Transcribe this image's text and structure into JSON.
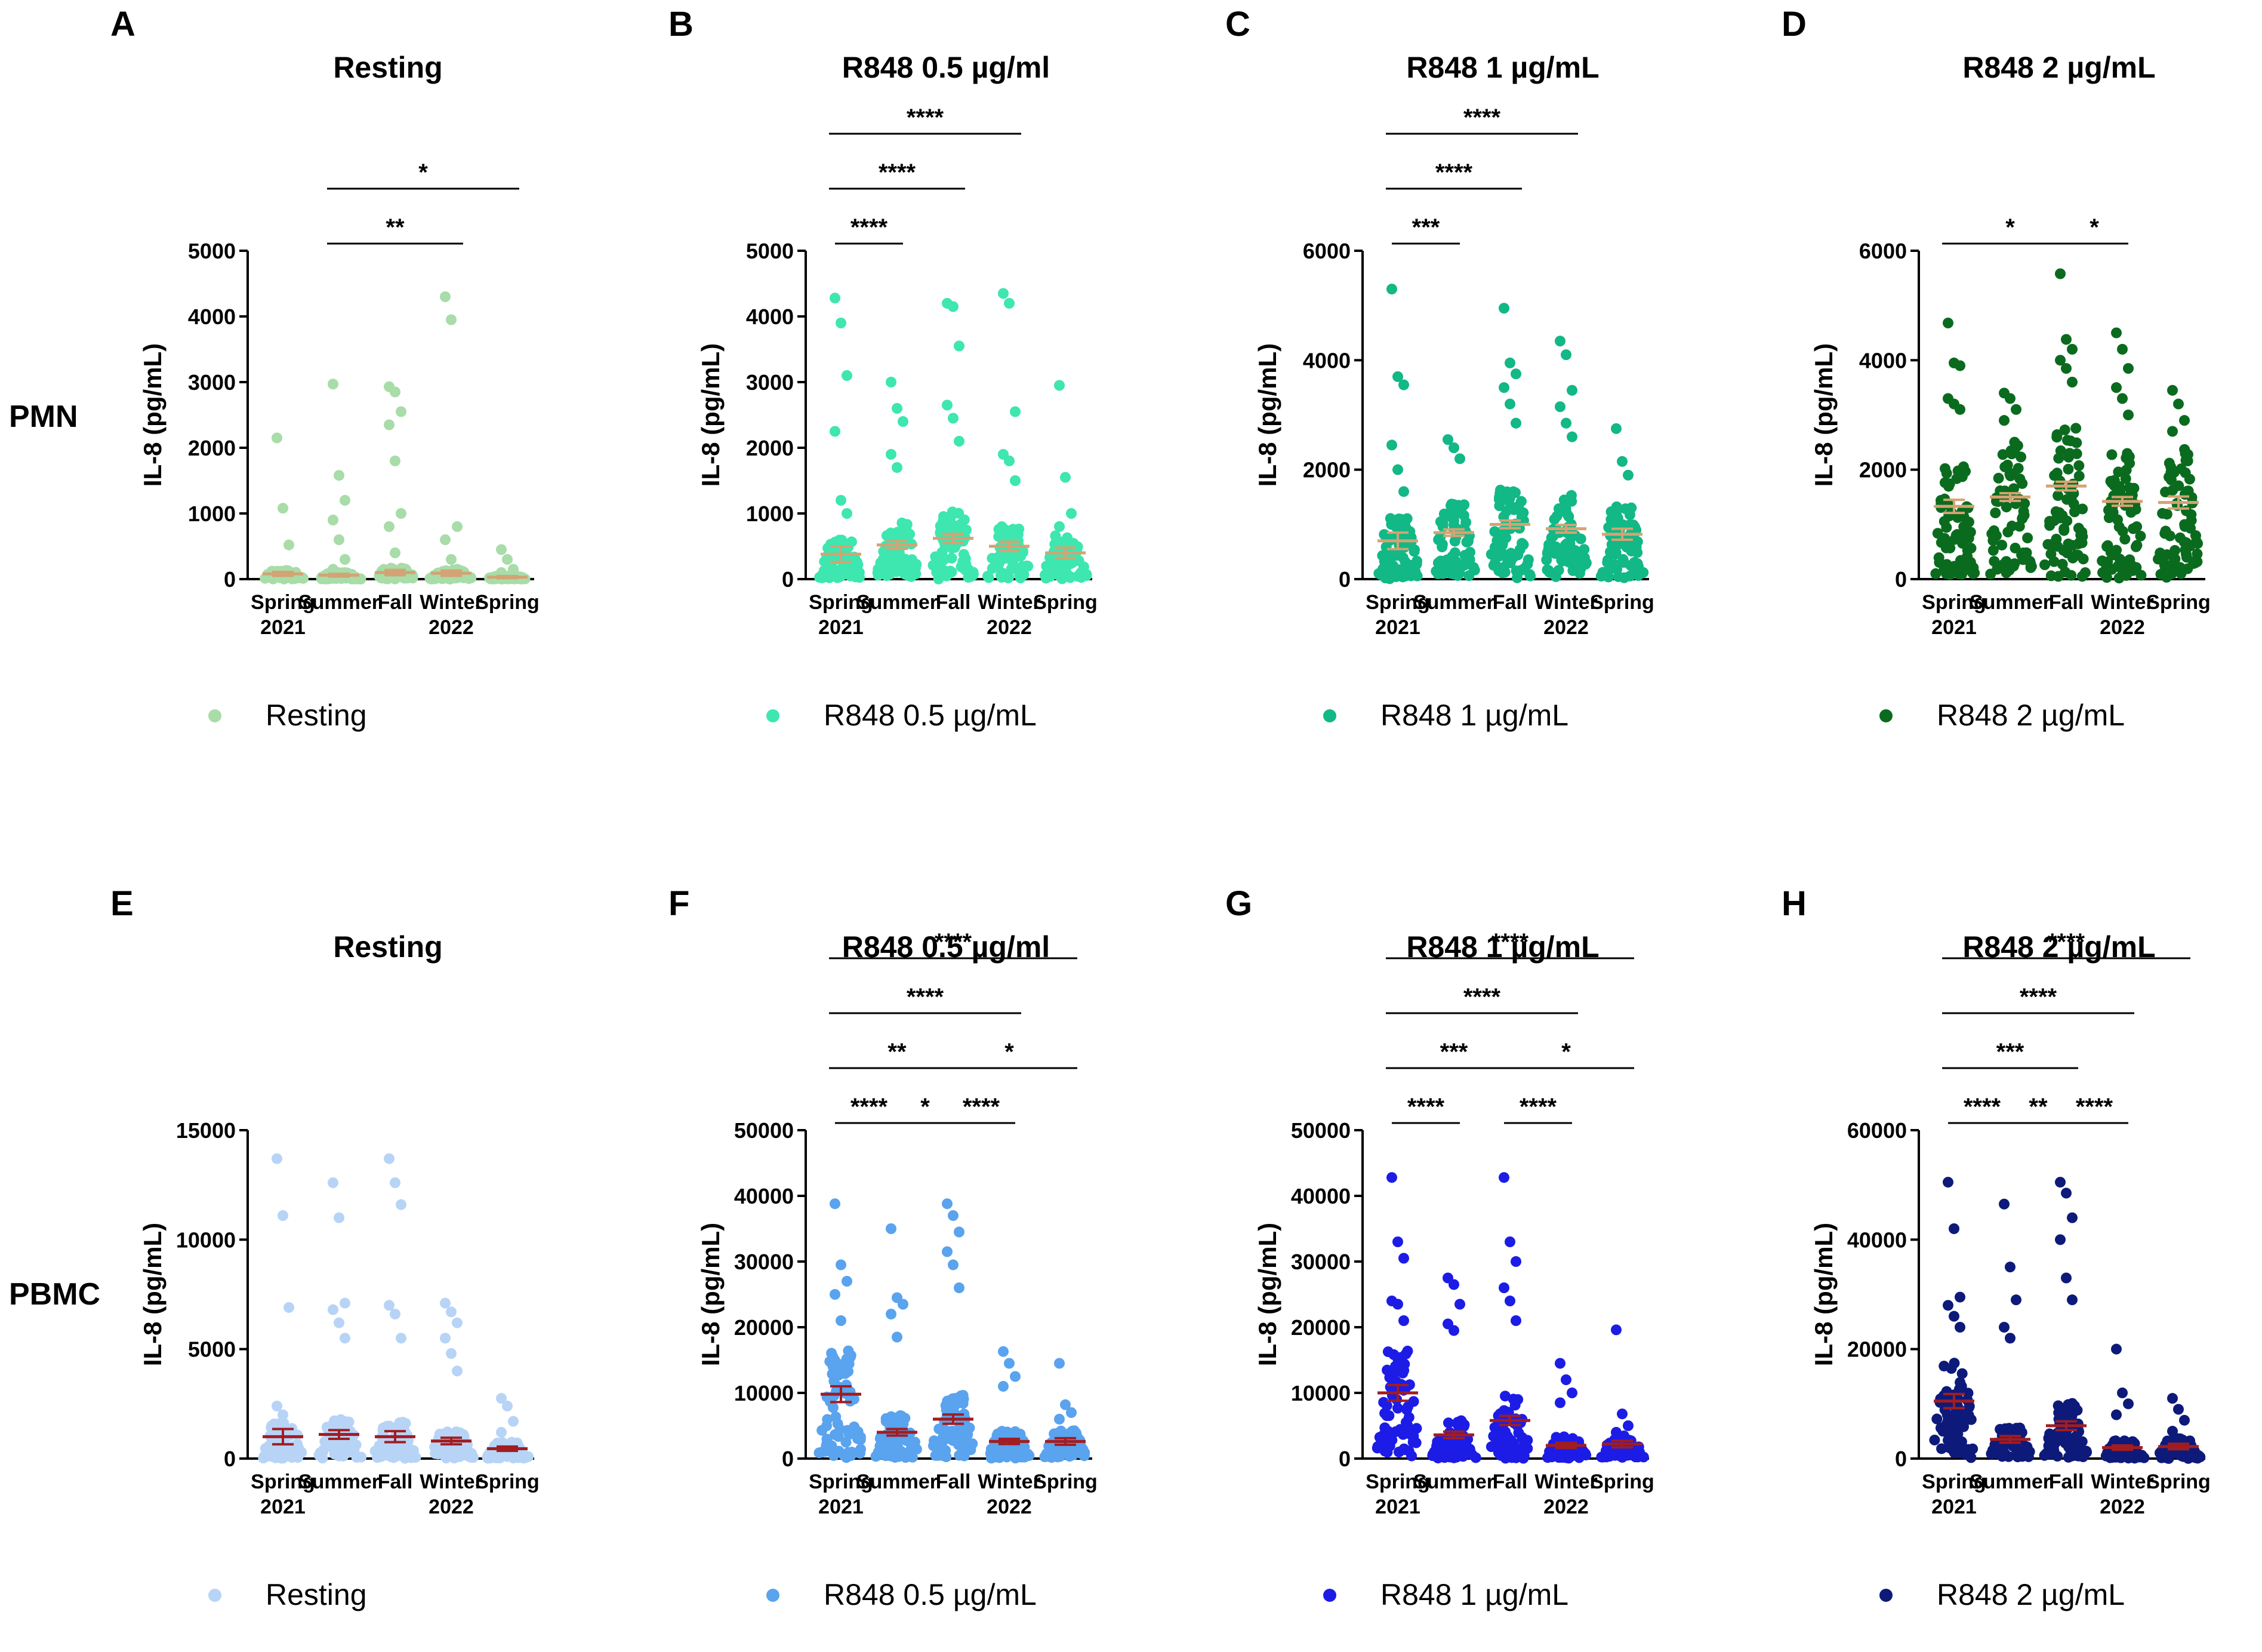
{
  "row_labels": [
    "PMN",
    "PBMC"
  ],
  "colors": {
    "mean_pmn": "#d4a373",
    "mean_pbmc": "#a11d21",
    "axis": "#000000"
  },
  "chart_data": [
    {
      "panel": "A",
      "type": "scatter",
      "title": "Resting",
      "ylabel": "IL-8 (pg/mL)",
      "ylim": [
        0,
        5000
      ],
      "yticks": [
        0,
        1000,
        2000,
        3000,
        4000,
        5000
      ],
      "yticklabels": [
        "0",
        "1000",
        "2000",
        "3000",
        "4000",
        "5000"
      ],
      "color": "#a8dca8",
      "legend": "Resting",
      "categories": [
        "Spring 2021",
        "Summer",
        "Fall",
        "Winter 2022",
        "Spring"
      ],
      "means": [
        80,
        60,
        100,
        90,
        30
      ],
      "sems": [
        30,
        20,
        40,
        40,
        15
      ],
      "outliers": [
        [
          2150,
          1080,
          520,
          120
        ],
        [
          2970,
          1580,
          1200,
          900,
          600,
          300,
          150
        ],
        [
          2930,
          2850,
          2550,
          2350,
          1800,
          1000,
          800,
          400
        ],
        [
          4300,
          3950,
          800,
          600,
          300,
          150
        ],
        [
          450,
          300,
          150,
          100
        ]
      ],
      "comparisons": [
        {
          "from": 1,
          "to": 3,
          "label": "**"
        },
        {
          "from": 1,
          "to": 4,
          "label": "*"
        }
      ]
    },
    {
      "panel": "B",
      "type": "scatter",
      "title": "R848 0.5 µg/ml",
      "ylabel": "IL-8 (pg/mL)",
      "ylim": [
        0,
        5000
      ],
      "yticks": [
        0,
        1000,
        2000,
        3000,
        4000,
        5000
      ],
      "yticklabels": [
        "0",
        "1000",
        "2000",
        "3000",
        "4000",
        "5000"
      ],
      "color": "#3ee6b0",
      "legend": "R848 0.5 µg/mL",
      "categories": [
        "Spring 2021",
        "Summer",
        "Fall",
        "Winter 2022",
        "Spring"
      ],
      "means": [
        380,
        520,
        620,
        500,
        400
      ],
      "sems": [
        120,
        60,
        70,
        70,
        80
      ],
      "outliers": [
        [
          4280,
          3900,
          3100,
          2250,
          1200,
          1000
        ],
        [
          3000,
          2600,
          2400,
          1900,
          1700
        ],
        [
          4200,
          4150,
          3550,
          2650,
          2450,
          2100
        ],
        [
          4350,
          4200,
          2550,
          1900,
          1800,
          1500
        ],
        [
          2950,
          1550,
          1000,
          800
        ]
      ],
      "comparisons": [
        {
          "from": 0,
          "to": 1,
          "label": "****"
        },
        {
          "from": 0,
          "to": 2,
          "label": "****"
        },
        {
          "from": 0,
          "to": 3,
          "label": "****"
        }
      ]
    },
    {
      "panel": "C",
      "type": "scatter",
      "title": "R848 1 µg/mL",
      "ylabel": "IL-8 (pg/mL)",
      "ylim": [
        0,
        6000
      ],
      "yticks": [
        0,
        2000,
        4000,
        6000
      ],
      "yticklabels": [
        "0",
        "2000",
        "4000",
        "6000"
      ],
      "color": "#12b886",
      "legend": "R848 1 µg/mL",
      "categories": [
        "Spring 2021",
        "Summer",
        "Fall",
        "Winter 2022",
        "Spring"
      ],
      "means": [
        700,
        850,
        1000,
        920,
        820
      ],
      "sems": [
        150,
        60,
        70,
        70,
        100
      ],
      "outliers": [
        [
          5300,
          3700,
          3550,
          2450,
          2000,
          1600
        ],
        [
          2550,
          2400,
          2200
        ],
        [
          4950,
          3950,
          3750,
          3500,
          3200,
          2850
        ],
        [
          4350,
          4100,
          3450,
          3150,
          2850,
          2600
        ],
        [
          2750,
          2150,
          1900
        ]
      ],
      "comparisons": [
        {
          "from": 0,
          "to": 1,
          "label": "***"
        },
        {
          "from": 0,
          "to": 2,
          "label": "****"
        },
        {
          "from": 0,
          "to": 3,
          "label": "****"
        }
      ]
    },
    {
      "panel": "D",
      "type": "scatter",
      "title": "R848 2 µg/mL",
      "ylabel": "IL-8 (pg/mL)",
      "ylim": [
        0,
        6000
      ],
      "yticks": [
        0,
        2000,
        4000,
        6000
      ],
      "yticklabels": [
        "0",
        "2000",
        "4000",
        "6000"
      ],
      "color": "#0a6b1e",
      "legend": "R848 2 µg/mL",
      "categories": [
        "Spring 2021",
        "Summer",
        "Fall",
        "Winter 2022",
        "Spring"
      ],
      "means": [
        1330,
        1500,
        1700,
        1420,
        1400
      ],
      "sems": [
        120,
        70,
        80,
        80,
        110
      ],
      "outliers": [
        [
          4680,
          3950,
          3900,
          3300,
          3200,
          3100
        ],
        [
          3400,
          3300,
          3100,
          2900
        ],
        [
          5580,
          4380,
          4200,
          4000,
          3850,
          3600
        ],
        [
          4500,
          4200,
          3850,
          3500,
          3300,
          3000
        ],
        [
          3450,
          3200,
          2900,
          2700
        ]
      ],
      "comparisons": [
        {
          "from": 0,
          "to": 2,
          "label": "*"
        },
        {
          "from": 2,
          "to": 3,
          "label": "*"
        }
      ]
    },
    {
      "panel": "E",
      "type": "scatter",
      "title": "Resting",
      "ylabel": "IL-8 (pg/mL)",
      "ylim": [
        0,
        15000
      ],
      "yticks": [
        0,
        5000,
        10000,
        15000
      ],
      "yticklabels": [
        "0",
        "5000",
        "10000",
        "15000"
      ],
      "color": "#b7d4f7",
      "legend": "Resting",
      "categories": [
        "Spring 2021",
        "Summer",
        "Fall",
        "Winter 2022",
        "Spring"
      ],
      "means": [
        1000,
        1100,
        1000,
        800,
        450
      ],
      "sems": [
        350,
        200,
        250,
        150,
        100
      ],
      "outliers": [
        [
          13700,
          11100,
          6900,
          2400,
          2000
        ],
        [
          12600,
          11000,
          7100,
          6800,
          6200,
          5500
        ],
        [
          13700,
          12600,
          11600,
          7000,
          6600,
          5500
        ],
        [
          7100,
          6700,
          6200,
          5500,
          4800,
          4000
        ],
        [
          2750,
          2400,
          1700,
          1200
        ]
      ],
      "comparisons": []
    },
    {
      "panel": "F",
      "type": "scatter",
      "title": "R848 0.5 µg/ml",
      "ylabel": "IL-8 (pg/mL)",
      "ylim": [
        0,
        50000
      ],
      "yticks": [
        0,
        10000,
        20000,
        30000,
        40000,
        50000
      ],
      "yticklabels": [
        "0",
        "10000",
        "20000",
        "30000",
        "40000",
        "50000"
      ],
      "color": "#5aa3ee",
      "legend": "R848 0.5 µg/mL",
      "categories": [
        "Spring 2021",
        "Summer",
        "Fall",
        "Winter 2022",
        "Spring"
      ],
      "means": [
        9800,
        4000,
        6000,
        2600,
        2600
      ],
      "sems": [
        1200,
        500,
        700,
        400,
        500
      ],
      "outliers": [
        [
          38800,
          29500,
          27000,
          25000,
          21000
        ],
        [
          35000,
          24500,
          23500,
          22000,
          18500
        ],
        [
          38800,
          37000,
          34500,
          31500,
          29500,
          26000
        ],
        [
          16300,
          14500,
          12500,
          11000
        ],
        [
          14500,
          8200,
          7000,
          6000
        ]
      ],
      "comparisons": [
        {
          "from": 0,
          "to": 1,
          "label": "****"
        },
        {
          "from": 1,
          "to": 2,
          "label": "*"
        },
        {
          "from": 2,
          "to": 3,
          "label": "****"
        },
        {
          "from": 0,
          "to": 2,
          "label": "**"
        },
        {
          "from": 2,
          "to": 4,
          "label": "*"
        },
        {
          "from": 0,
          "to": 3,
          "label": "****"
        },
        {
          "from": 0,
          "to": 4,
          "label": "****"
        }
      ]
    },
    {
      "panel": "G",
      "type": "scatter",
      "title": "R848 1 µg/mL",
      "ylabel": "IL-8 (pg/mL)",
      "ylim": [
        0,
        50000
      ],
      "yticks": [
        0,
        10000,
        20000,
        30000,
        40000,
        50000
      ],
      "yticklabels": [
        "0",
        "10000",
        "20000",
        "30000",
        "40000",
        "50000"
      ],
      "color": "#1c1ce6",
      "legend": "R848 1 µg/mL",
      "categories": [
        "Spring 2021",
        "Summer",
        "Fall",
        "Winter 2022",
        "Spring"
      ],
      "means": [
        10000,
        3600,
        5800,
        2000,
        2200
      ],
      "sems": [
        1200,
        500,
        700,
        400,
        500
      ],
      "outliers": [
        [
          42800,
          33000,
          30500,
          24000,
          23500,
          21000
        ],
        [
          27500,
          26500,
          23500,
          20500,
          19500
        ],
        [
          42800,
          33000,
          30000,
          26000,
          24000,
          21000
        ],
        [
          14500,
          12000,
          10000,
          8500
        ],
        [
          19600,
          6800,
          5000,
          4000
        ]
      ],
      "comparisons": [
        {
          "from": 0,
          "to": 1,
          "label": "****"
        },
        {
          "from": 2,
          "to": 3,
          "label": "****"
        },
        {
          "from": 0,
          "to": 2,
          "label": "***"
        },
        {
          "from": 2,
          "to": 4,
          "label": "*"
        },
        {
          "from": 0,
          "to": 3,
          "label": "****"
        },
        {
          "from": 0,
          "to": 4,
          "label": "****"
        }
      ]
    },
    {
      "panel": "H",
      "type": "scatter",
      "title": "R848 2 µg/mL",
      "ylabel": "IL-8 (pg/mL)",
      "ylim": [
        0,
        60000
      ],
      "yticks": [
        0,
        20000,
        40000,
        60000
      ],
      "yticklabels": [
        "0",
        "20000",
        "40000",
        "60000"
      ],
      "color": "#0d1a7a",
      "legend": "R848 2 µg/mL",
      "categories": [
        "Spring 2021",
        "Summer",
        "Fall",
        "Winter 2022",
        "Spring"
      ],
      "means": [
        10500,
        3500,
        6000,
        2000,
        2200
      ],
      "sems": [
        1300,
        600,
        800,
        400,
        500
      ],
      "outliers": [
        [
          50500,
          42000,
          29500,
          28000,
          26000,
          24000
        ],
        [
          46500,
          35000,
          29000,
          24000,
          22000
        ],
        [
          50500,
          48500,
          44000,
          40000,
          33000,
          29000
        ],
        [
          20000,
          12000,
          10000,
          8000
        ],
        [
          11000,
          9000,
          7000,
          5000
        ]
      ],
      "comparisons": [
        {
          "from": 0,
          "to": 1,
          "label": "****"
        },
        {
          "from": 1,
          "to": 2,
          "label": "**"
        },
        {
          "from": 2,
          "to": 3,
          "label": "****"
        },
        {
          "from": 0,
          "to": 2,
          "label": "***"
        },
        {
          "from": 0,
          "to": 3,
          "label": "****"
        },
        {
          "from": 0,
          "to": 4,
          "label": "****"
        }
      ]
    }
  ]
}
